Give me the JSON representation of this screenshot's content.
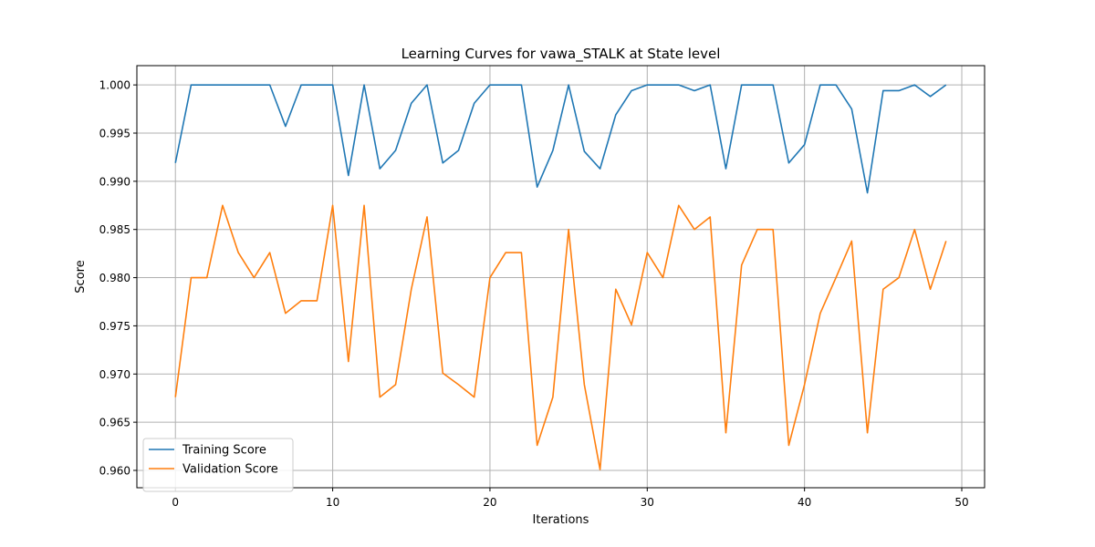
{
  "chart_data": {
    "type": "line",
    "title": "Learning Curves for vawa_STALK at State level",
    "xlabel": "Iterations",
    "ylabel": "Score",
    "xlim": [
      -2.45,
      51.45
    ],
    "ylim": [
      0.9582,
      1.002
    ],
    "xticks": [
      0,
      10,
      20,
      30,
      40,
      50
    ],
    "yticks": [
      0.96,
      0.965,
      0.97,
      0.975,
      0.98,
      0.985,
      0.99,
      0.995,
      1.0
    ],
    "grid": true,
    "legend_position": "lower-left",
    "x": [
      0,
      1,
      2,
      3,
      4,
      5,
      6,
      7,
      8,
      9,
      10,
      11,
      12,
      13,
      14,
      15,
      16,
      17,
      18,
      19,
      20,
      21,
      22,
      23,
      24,
      25,
      26,
      27,
      28,
      29,
      30,
      31,
      32,
      33,
      34,
      35,
      36,
      37,
      38,
      39,
      40,
      41,
      42,
      43,
      44,
      45,
      46,
      47,
      48,
      49
    ],
    "series": [
      {
        "name": "Training Score",
        "color": "#1f77b4",
        "values": [
          0.9919,
          1.0,
          1.0,
          1.0,
          1.0,
          1.0,
          1.0,
          0.9957,
          1.0,
          1.0,
          1.0,
          0.9906,
          1.0,
          0.9913,
          0.9932,
          0.9981,
          1.0,
          0.9919,
          0.9932,
          0.9981,
          1.0,
          1.0,
          1.0,
          0.9894,
          0.9932,
          1.0,
          0.9931,
          0.9913,
          0.9969,
          0.9994,
          1.0,
          1.0,
          1.0,
          0.9994,
          1.0,
          0.9913,
          1.0,
          1.0,
          1.0,
          0.9919,
          0.9938,
          1.0,
          1.0,
          0.9975,
          0.9888,
          0.9994,
          0.9994,
          1.0,
          0.9988,
          1.0
        ]
      },
      {
        "name": "Validation Score",
        "color": "#ff7f0e",
        "values": [
          0.9676,
          0.98,
          0.98,
          0.9875,
          0.9826,
          0.98,
          0.9826,
          0.9763,
          0.9776,
          0.9776,
          0.9875,
          0.9713,
          0.9875,
          0.9676,
          0.9689,
          0.9788,
          0.9863,
          0.9701,
          0.9689,
          0.9676,
          0.98,
          0.9826,
          0.9826,
          0.9626,
          0.9676,
          0.985,
          0.9689,
          0.9601,
          0.9788,
          0.9751,
          0.9826,
          0.98,
          0.9875,
          0.985,
          0.9863,
          0.9639,
          0.9813,
          0.985,
          0.985,
          0.9626,
          0.9689,
          0.9763,
          0.98,
          0.9838,
          0.9639,
          0.9788,
          0.98,
          0.985,
          0.9788,
          0.9838
        ]
      }
    ]
  }
}
